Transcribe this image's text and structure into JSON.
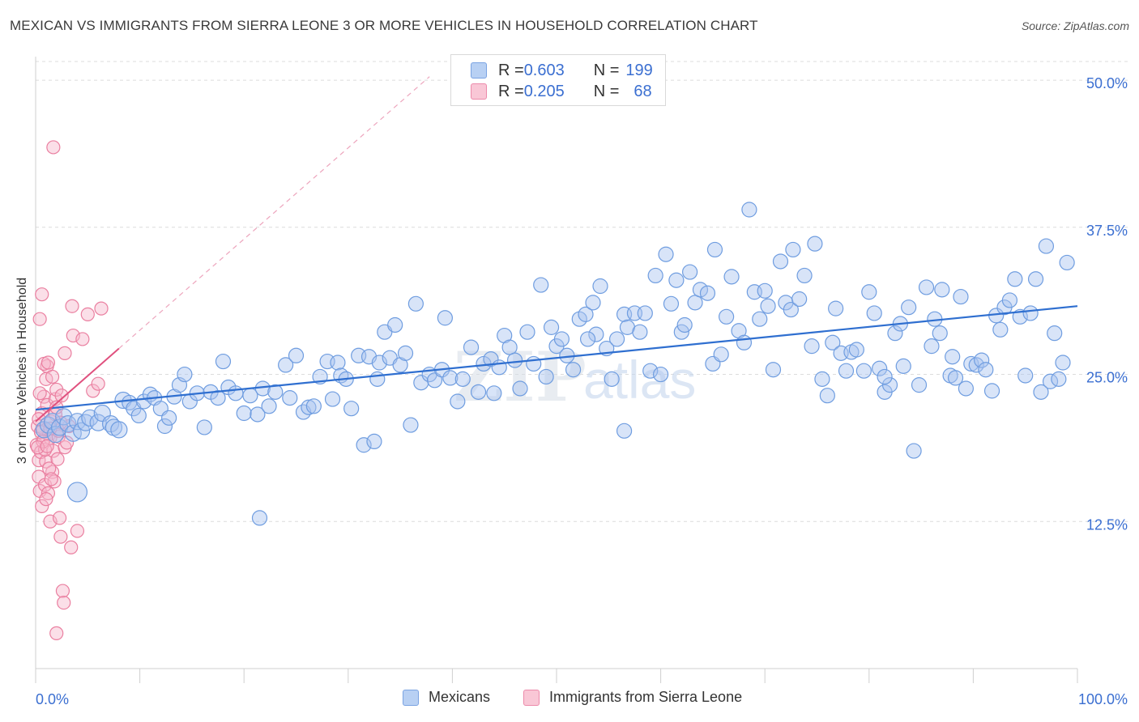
{
  "title": "MEXICAN VS IMMIGRANTS FROM SIERRA LEONE 3 OR MORE VEHICLES IN HOUSEHOLD CORRELATION CHART",
  "source": "Source: ZipAtlas.com",
  "watermark": "ZIPatlas",
  "colors": {
    "blue_fill": "#a9c4ef",
    "blue_stroke": "#6f9de0",
    "blue_line": "#2f6fd0",
    "pink_fill": "#f6b9cb",
    "pink_stroke": "#ea7fa0",
    "pink_line": "#e0507e",
    "axis_text": "#3b6fd1",
    "grid": "#dcdcdc"
  },
  "legend": {
    "rows": [
      {
        "r_label": "R = ",
        "r_value": "0.603",
        "n_label": "N = ",
        "n_value": "199"
      },
      {
        "r_label": "R = ",
        "r_value": "0.205",
        "n_label": "N = ",
        "n_value": "68"
      }
    ]
  },
  "bottom_legend": {
    "mexicans": "Mexicans",
    "sierra_leone": "Immigrants from Sierra Leone"
  },
  "chart_data": {
    "type": "scatter",
    "title": "MEXICAN VS IMMIGRANTS FROM SIERRA LEONE 3 OR MORE VEHICLES IN HOUSEHOLD CORRELATION CHART",
    "ylabel": "3 or more Vehicles in Household",
    "xlabel": "",
    "xlim": [
      0,
      100
    ],
    "ylim": [
      0,
      52
    ],
    "x_tick_labels": [
      "0.0%",
      "100.0%"
    ],
    "y_ticks": [
      12.5,
      25.0,
      37.5,
      50.0
    ],
    "y_tick_labels": [
      "12.5%",
      "25.0%",
      "37.5%",
      "50.0%"
    ],
    "grid": true,
    "legend_position": "top-center",
    "series": [
      {
        "name": "Mexicans",
        "r": 0.603,
        "n": 199,
        "trend": {
          "x0": 0,
          "y0": 22.0,
          "x1": 100,
          "y1": 30.8
        },
        "points": [
          [
            0.8,
            20.3
          ],
          [
            1.2,
            20.7
          ],
          [
            1.6,
            21.0
          ],
          [
            1.9,
            19.9
          ],
          [
            2.3,
            20.5
          ],
          [
            2.7,
            21.4
          ],
          [
            3.1,
            20.8
          ],
          [
            3.6,
            20.0
          ],
          [
            4.0,
            21.0
          ],
          [
            4.4,
            20.2
          ],
          [
            4.8,
            20.9
          ],
          [
            5.2,
            21.3
          ],
          [
            6.0,
            20.9
          ],
          [
            6.4,
            21.7
          ],
          [
            7.2,
            20.8
          ],
          [
            7.5,
            20.5
          ],
          [
            8.0,
            20.3
          ],
          [
            8.4,
            22.8
          ],
          [
            9.0,
            22.6
          ],
          [
            9.4,
            22.1
          ],
          [
            9.9,
            21.5
          ],
          [
            10.4,
            22.7
          ],
          [
            11.0,
            23.3
          ],
          [
            11.4,
            23.0
          ],
          [
            12.0,
            22.1
          ],
          [
            12.4,
            20.6
          ],
          [
            12.8,
            21.3
          ],
          [
            13.3,
            23.1
          ],
          [
            13.8,
            24.1
          ],
          [
            14.3,
            25.0
          ],
          [
            14.8,
            22.7
          ],
          [
            15.5,
            23.4
          ],
          [
            16.2,
            20.5
          ],
          [
            16.8,
            23.5
          ],
          [
            17.5,
            23.0
          ],
          [
            18.0,
            26.1
          ],
          [
            18.5,
            23.9
          ],
          [
            19.2,
            23.4
          ],
          [
            20.0,
            21.7
          ],
          [
            20.6,
            23.2
          ],
          [
            21.3,
            21.6
          ],
          [
            21.8,
            23.8
          ],
          [
            22.4,
            22.3
          ],
          [
            23.0,
            23.5
          ],
          [
            24.0,
            25.8
          ],
          [
            24.4,
            23.0
          ],
          [
            25.0,
            26.6
          ],
          [
            25.7,
            21.8
          ],
          [
            26.2,
            22.2
          ],
          [
            26.7,
            22.3
          ],
          [
            27.3,
            24.8
          ],
          [
            28.0,
            26.1
          ],
          [
            28.5,
            22.9
          ],
          [
            29.0,
            26.0
          ],
          [
            29.3,
            24.9
          ],
          [
            29.8,
            24.6
          ],
          [
            30.3,
            22.1
          ],
          [
            31.0,
            26.6
          ],
          [
            31.5,
            19.0
          ],
          [
            32.0,
            26.5
          ],
          [
            32.5,
            19.3
          ],
          [
            33.0,
            26.0
          ],
          [
            33.5,
            28.6
          ],
          [
            34.0,
            26.4
          ],
          [
            34.5,
            29.2
          ],
          [
            35.0,
            25.8
          ],
          [
            35.5,
            26.8
          ],
          [
            36.0,
            20.7
          ],
          [
            36.5,
            31.0
          ],
          [
            37.0,
            24.3
          ],
          [
            37.8,
            25.0
          ],
          [
            38.3,
            24.5
          ],
          [
            39.0,
            25.4
          ],
          [
            39.3,
            29.8
          ],
          [
            39.8,
            24.7
          ],
          [
            40.5,
            22.7
          ],
          [
            41.0,
            24.6
          ],
          [
            41.8,
            27.3
          ],
          [
            42.5,
            23.5
          ],
          [
            43.0,
            25.9
          ],
          [
            43.7,
            26.3
          ],
          [
            44.5,
            25.6
          ],
          [
            45.0,
            28.3
          ],
          [
            45.5,
            27.3
          ],
          [
            46.0,
            26.2
          ],
          [
            46.5,
            23.8
          ],
          [
            47.2,
            28.6
          ],
          [
            47.8,
            25.9
          ],
          [
            48.5,
            32.6
          ],
          [
            49.0,
            24.8
          ],
          [
            49.5,
            29.0
          ],
          [
            50.0,
            27.4
          ],
          [
            50.5,
            28.0
          ],
          [
            51.0,
            26.6
          ],
          [
            51.6,
            25.4
          ],
          [
            52.2,
            29.7
          ],
          [
            52.8,
            30.1
          ],
          [
            53.5,
            31.1
          ],
          [
            53.8,
            28.4
          ],
          [
            54.2,
            32.5
          ],
          [
            54.8,
            27.2
          ],
          [
            55.3,
            24.6
          ],
          [
            55.8,
            28.0
          ],
          [
            56.5,
            30.1
          ],
          [
            56.8,
            29.0
          ],
          [
            57.5,
            30.2
          ],
          [
            58.0,
            28.6
          ],
          [
            58.5,
            30.2
          ],
          [
            59.0,
            25.3
          ],
          [
            59.5,
            33.4
          ],
          [
            60.0,
            25.0
          ],
          [
            60.5,
            35.2
          ],
          [
            61.0,
            31.0
          ],
          [
            61.5,
            33.0
          ],
          [
            62.0,
            28.6
          ],
          [
            62.3,
            29.2
          ],
          [
            62.8,
            33.7
          ],
          [
            63.3,
            31.1
          ],
          [
            63.8,
            32.2
          ],
          [
            64.5,
            31.9
          ],
          [
            65.0,
            25.9
          ],
          [
            65.2,
            35.6
          ],
          [
            65.8,
            26.7
          ],
          [
            66.3,
            29.9
          ],
          [
            66.8,
            33.3
          ],
          [
            67.5,
            28.7
          ],
          [
            68.0,
            27.7
          ],
          [
            68.5,
            39.0
          ],
          [
            69.0,
            32.0
          ],
          [
            69.5,
            29.7
          ],
          [
            70.0,
            32.1
          ],
          [
            70.3,
            30.8
          ],
          [
            70.8,
            25.4
          ],
          [
            71.5,
            34.6
          ],
          [
            72.0,
            31.1
          ],
          [
            72.5,
            30.5
          ],
          [
            72.7,
            35.6
          ],
          [
            73.3,
            31.4
          ],
          [
            73.8,
            33.4
          ],
          [
            74.5,
            27.4
          ],
          [
            74.8,
            36.1
          ],
          [
            75.5,
            24.6
          ],
          [
            76.0,
            23.2
          ],
          [
            76.5,
            27.7
          ],
          [
            76.8,
            30.6
          ],
          [
            77.3,
            26.8
          ],
          [
            77.8,
            25.3
          ],
          [
            78.3,
            26.9
          ],
          [
            78.8,
            27.1
          ],
          [
            79.5,
            25.3
          ],
          [
            80.0,
            32.0
          ],
          [
            80.5,
            30.2
          ],
          [
            81.0,
            25.5
          ],
          [
            81.5,
            23.5
          ],
          [
            82.0,
            24.1
          ],
          [
            82.5,
            28.5
          ],
          [
            83.0,
            29.3
          ],
          [
            83.3,
            25.7
          ],
          [
            83.8,
            30.7
          ],
          [
            84.3,
            18.5
          ],
          [
            84.8,
            24.1
          ],
          [
            85.5,
            32.4
          ],
          [
            86.0,
            27.4
          ],
          [
            86.3,
            29.7
          ],
          [
            86.8,
            28.5
          ],
          [
            87.0,
            32.2
          ],
          [
            87.8,
            24.9
          ],
          [
            88.3,
            24.7
          ],
          [
            88.8,
            31.6
          ],
          [
            89.3,
            23.8
          ],
          [
            89.8,
            25.9
          ],
          [
            90.3,
            25.8
          ],
          [
            90.8,
            26.2
          ],
          [
            91.2,
            25.4
          ],
          [
            91.8,
            23.6
          ],
          [
            92.2,
            30.0
          ],
          [
            92.6,
            28.8
          ],
          [
            93.0,
            30.7
          ],
          [
            93.5,
            31.3
          ],
          [
            94.0,
            33.1
          ],
          [
            94.5,
            29.9
          ],
          [
            95.0,
            24.9
          ],
          [
            95.5,
            30.2
          ],
          [
            96.0,
            33.1
          ],
          [
            96.5,
            23.5
          ],
          [
            97.0,
            35.9
          ],
          [
            97.4,
            24.4
          ],
          [
            97.8,
            28.5
          ],
          [
            98.2,
            24.6
          ],
          [
            98.6,
            26.0
          ],
          [
            99.0,
            34.5
          ],
          [
            4.0,
            15.0
          ],
          [
            21.5,
            12.8
          ],
          [
            56.5,
            20.2
          ],
          [
            81.5,
            24.8
          ],
          [
            32.8,
            24.6
          ],
          [
            44.0,
            23.4
          ],
          [
            53.0,
            28.0
          ],
          [
            88.0,
            26.5
          ]
        ]
      },
      {
        "name": "Immigrants from Sierra Leone",
        "r": 0.205,
        "n": 68,
        "trend": {
          "x0": 0,
          "y0": 21.0,
          "x1": 8.0,
          "y1": 27.2
        },
        "points": [
          [
            0.1,
            19.0
          ],
          [
            0.2,
            20.6
          ],
          [
            0.3,
            17.7
          ],
          [
            0.3,
            16.3
          ],
          [
            0.4,
            15.1
          ],
          [
            0.5,
            18.4
          ],
          [
            0.6,
            21.7
          ],
          [
            0.6,
            13.8
          ],
          [
            0.7,
            20.4
          ],
          [
            0.8,
            19.5
          ],
          [
            0.8,
            23.1
          ],
          [
            0.9,
            15.6
          ],
          [
            1.0,
            17.6
          ],
          [
            1.0,
            24.6
          ],
          [
            1.1,
            22.4
          ],
          [
            1.1,
            25.7
          ],
          [
            1.2,
            14.9
          ],
          [
            1.3,
            19.9
          ],
          [
            1.4,
            12.5
          ],
          [
            1.4,
            19.6
          ],
          [
            1.5,
            21.0
          ],
          [
            1.6,
            16.7
          ],
          [
            1.7,
            18.5
          ],
          [
            1.8,
            15.9
          ],
          [
            1.9,
            22.9
          ],
          [
            2.0,
            23.7
          ],
          [
            2.1,
            17.8
          ],
          [
            2.2,
            19.7
          ],
          [
            2.3,
            12.8
          ],
          [
            2.4,
            11.2
          ],
          [
            2.5,
            23.2
          ],
          [
            2.6,
            6.6
          ],
          [
            2.7,
            5.6
          ],
          [
            2.8,
            18.8
          ],
          [
            3.0,
            19.2
          ],
          [
            3.2,
            20.6
          ],
          [
            3.4,
            10.3
          ],
          [
            3.5,
            30.8
          ],
          [
            3.6,
            28.3
          ],
          [
            4.0,
            11.7
          ],
          [
            4.5,
            28.0
          ],
          [
            5.0,
            30.1
          ],
          [
            5.5,
            23.6
          ],
          [
            6.0,
            24.2
          ],
          [
            6.3,
            30.6
          ],
          [
            1.7,
            44.3
          ],
          [
            0.4,
            29.7
          ],
          [
            0.6,
            31.8
          ],
          [
            0.8,
            25.9
          ],
          [
            1.2,
            26.0
          ],
          [
            0.5,
            20.1
          ],
          [
            0.9,
            18.6
          ],
          [
            1.3,
            17.0
          ],
          [
            1.5,
            16.1
          ],
          [
            1.9,
            21.6
          ],
          [
            2.2,
            20.2
          ],
          [
            0.3,
            21.2
          ],
          [
            0.7,
            19.3
          ],
          [
            1.0,
            14.4
          ],
          [
            1.6,
            24.8
          ],
          [
            2.0,
            22.2
          ],
          [
            2.4,
            20.9
          ],
          [
            0.2,
            18.8
          ],
          [
            1.1,
            18.9
          ],
          [
            2.8,
            26.8
          ],
          [
            1.4,
            20.4
          ],
          [
            0.4,
            23.4
          ],
          [
            2.0,
            3.0
          ]
        ]
      }
    ]
  }
}
